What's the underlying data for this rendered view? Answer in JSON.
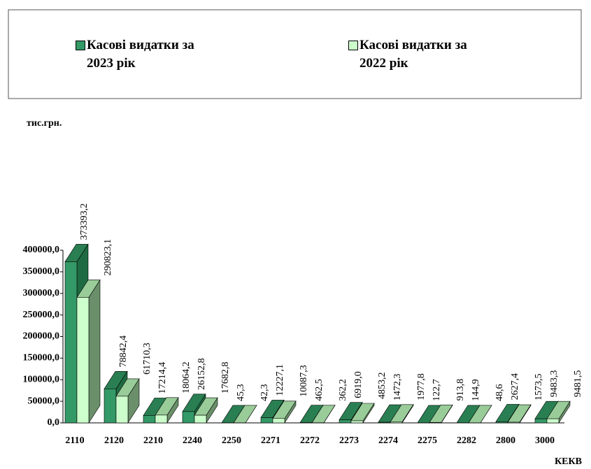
{
  "chart_data": {
    "type": "bar3d",
    "y_label": "тис.грн.",
    "x_label": "КЕКВ",
    "categories": [
      "2110",
      "2120",
      "2210",
      "2240",
      "2250",
      "2271",
      "2272",
      "2273",
      "2274",
      "2275",
      "2282",
      "2800",
      "3000"
    ],
    "series": [
      {
        "name": "Касові видатки за 2023 рік",
        "color": "#339966",
        "values": [
          373393.2,
          78842.4,
          17214.4,
          26152.8,
          45.3,
          12227.1,
          462.5,
          6919.0,
          1472.3,
          122.7,
          144.9,
          2627.4,
          9483.3
        ],
        "value_labels": [
          "373393,2",
          "78842,4",
          "17214,4",
          "26152,8",
          "45,3",
          "12227,1",
          "462,5",
          "6919,0",
          "1472,3",
          "122,7",
          "144,9",
          "2627,4",
          "9483,3"
        ]
      },
      {
        "name": "Касові видатки за 2022 рік",
        "color": "#ccffcc",
        "values": [
          290823.1,
          61710.3,
          18064.2,
          17682.8,
          42.3,
          10087.3,
          362.2,
          4853.2,
          1977.8,
          913.8,
          48.6,
          1573.5,
          9481.5
        ],
        "value_labels": [
          "290823,1",
          "61710,3",
          "18064,2",
          "17682,8",
          "42,3",
          "10087,3",
          "362,2",
          "4853,2",
          "1977,8",
          "913,8",
          "48,6",
          "1573,5",
          "9481,5"
        ]
      }
    ],
    "ylim": [
      0,
      400000
    ],
    "yticks": [
      {
        "value": 0,
        "label": "0,0"
      },
      {
        "value": 50000,
        "label": "50000,0"
      },
      {
        "value": 100000,
        "label": "100000,0"
      },
      {
        "value": 150000,
        "label": "150000,0"
      },
      {
        "value": 200000,
        "label": "200000,0"
      },
      {
        "value": 250000,
        "label": "250000,0"
      },
      {
        "value": 300000,
        "label": "300000,0"
      },
      {
        "value": 350000,
        "label": "350000,0"
      },
      {
        "value": 400000,
        "label": "400000,0"
      }
    ]
  }
}
